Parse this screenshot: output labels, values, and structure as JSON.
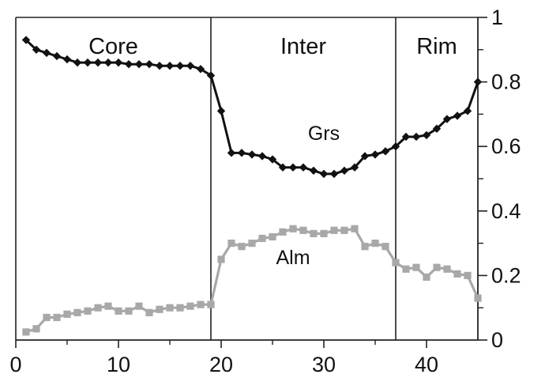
{
  "chart_data": {
    "type": "line",
    "title": "",
    "xlabel": "",
    "ylabel": "",
    "xlim": [
      0,
      45
    ],
    "ylim": [
      0,
      1
    ],
    "x_ticks": [
      0,
      10,
      20,
      30,
      40
    ],
    "x_tick_labels": [
      "0",
      "10",
      "20",
      "30",
      "40"
    ],
    "y_ticks": [
      0,
      0.2,
      0.4,
      0.6,
      0.8,
      1
    ],
    "y_tick_labels": [
      "0",
      "0.2",
      "0.4",
      "0.6",
      "0.8",
      "1"
    ],
    "y_axis_side": "right",
    "grid": false,
    "zones": [
      {
        "label": "Core",
        "x_start": 0,
        "x_end": 19
      },
      {
        "label": "Inter",
        "x_start": 19,
        "x_end": 37
      },
      {
        "label": "Rim",
        "x_start": 37,
        "x_end": 45
      }
    ],
    "zone_boundaries": [
      19,
      37
    ],
    "series": [
      {
        "name": "Grs",
        "color": "#111111",
        "marker": "diamond",
        "x": [
          1,
          2,
          3,
          4,
          5,
          6,
          7,
          8,
          9,
          10,
          11,
          12,
          13,
          14,
          15,
          16,
          17,
          18,
          19,
          20,
          21,
          22,
          23,
          24,
          25,
          26,
          27,
          28,
          29,
          30,
          31,
          32,
          33,
          34,
          35,
          36,
          37,
          38,
          39,
          40,
          41,
          42,
          43,
          44,
          45
        ],
        "values": [
          0.93,
          0.9,
          0.89,
          0.88,
          0.87,
          0.86,
          0.86,
          0.86,
          0.86,
          0.86,
          0.855,
          0.855,
          0.855,
          0.85,
          0.85,
          0.85,
          0.85,
          0.84,
          0.82,
          0.71,
          0.58,
          0.58,
          0.575,
          0.57,
          0.56,
          0.535,
          0.535,
          0.535,
          0.525,
          0.515,
          0.515,
          0.525,
          0.535,
          0.57,
          0.575,
          0.585,
          0.6,
          0.63,
          0.63,
          0.635,
          0.655,
          0.685,
          0.695,
          0.71,
          0.8
        ]
      },
      {
        "name": "Alm",
        "color": "#a8a8a8",
        "marker": "square",
        "x": [
          1,
          2,
          3,
          4,
          5,
          6,
          7,
          8,
          9,
          10,
          11,
          12,
          13,
          14,
          15,
          16,
          17,
          18,
          19,
          20,
          21,
          22,
          23,
          24,
          25,
          26,
          27,
          28,
          29,
          30,
          31,
          32,
          33,
          34,
          35,
          36,
          37,
          38,
          39,
          40,
          41,
          42,
          43,
          44,
          45
        ],
        "values": [
          0.025,
          0.035,
          0.07,
          0.07,
          0.08,
          0.085,
          0.09,
          0.1,
          0.105,
          0.09,
          0.09,
          0.105,
          0.085,
          0.095,
          0.1,
          0.1,
          0.105,
          0.11,
          0.11,
          0.25,
          0.3,
          0.29,
          0.3,
          0.315,
          0.32,
          0.335,
          0.345,
          0.34,
          0.33,
          0.33,
          0.34,
          0.34,
          0.345,
          0.29,
          0.3,
          0.29,
          0.24,
          0.22,
          0.225,
          0.195,
          0.225,
          0.22,
          0.205,
          0.2,
          0.13
        ]
      }
    ]
  }
}
